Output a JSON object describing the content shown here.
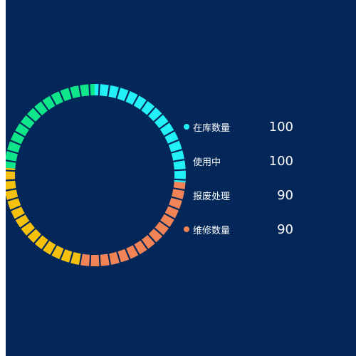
{
  "chart_data": {
    "type": "pie",
    "style": "segmented-ring",
    "legend_position": "right",
    "series": [
      {
        "name": "在库数量",
        "value": 100,
        "color": "#22f1f7"
      },
      {
        "name": "使用中",
        "value": 100,
        "color": "#f28357"
      },
      {
        "name": "报废处理",
        "value": 90,
        "color": "#f5c10d"
      },
      {
        "name": "维修数量",
        "value": 90,
        "color": "#0fe68a"
      }
    ]
  },
  "legend": [
    {
      "label": "在库数量",
      "value": "100",
      "dot_color": "#22f1f7"
    },
    {
      "label": "使用中",
      "value": "100",
      "dot_color": ""
    },
    {
      "label": "报废处理",
      "value": "90",
      "dot_color": ""
    },
    {
      "label": "维修数量",
      "value": "90",
      "dot_color": "#f28357"
    }
  ],
  "colors": {
    "background": "#022758",
    "divider": "#022758"
  }
}
